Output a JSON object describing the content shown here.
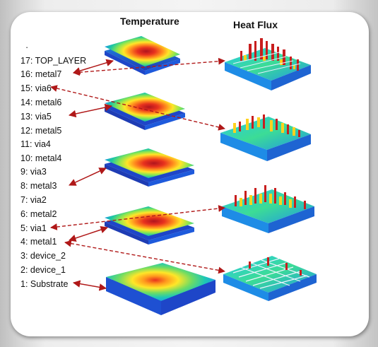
{
  "headers": {
    "temperature": "Temperature",
    "heat_flux": "Heat Flux"
  },
  "layers": [
    {
      "id": 17,
      "label": "17: TOP_LAYER"
    },
    {
      "id": 16,
      "label": "16: metal7"
    },
    {
      "id": 15,
      "label": "15: via6"
    },
    {
      "id": 14,
      "label": "14: metal6"
    },
    {
      "id": 13,
      "label": "13: via5"
    },
    {
      "id": 12,
      "label": "12: metal5"
    },
    {
      "id": 11,
      "label": "11: via4"
    },
    {
      "id": 10,
      "label": "10: metal4"
    },
    {
      "id": 9,
      "label": "9: via3"
    },
    {
      "id": 8,
      "label": "8: metal3"
    },
    {
      "id": 7,
      "label": "7: via2"
    },
    {
      "id": 6,
      "label": "6: metal2"
    },
    {
      "id": 5,
      "label": "5: via1"
    },
    {
      "id": 4,
      "label": "4: metal1"
    },
    {
      "id": 3,
      "label": "3: device_2"
    },
    {
      "id": 2,
      "label": "2: device_1"
    },
    {
      "id": 1,
      "label": "1: Substrate"
    }
  ],
  "stray_mark": "·",
  "colors": {
    "arrow": "#b01818",
    "hot": "#c81e1e",
    "warm": "#ffd21e",
    "mid": "#46d278",
    "cool": "#28aaf0",
    "cold": "#1e3cd2",
    "card": "#ffffff"
  }
}
